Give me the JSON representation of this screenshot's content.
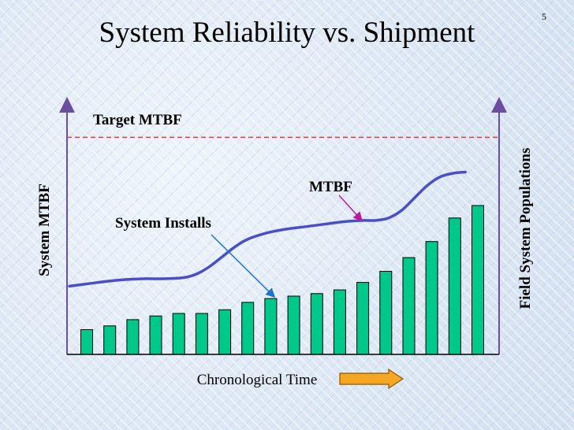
{
  "slide": {
    "number": "5",
    "title": "System Reliability vs. Shipment"
  },
  "chart_data": {
    "type": "bar",
    "title": "System Reliability vs. Shipment",
    "xlabel": "Chronological Time",
    "ylabel": "System MTBF",
    "y2label": "Field System Populations",
    "target_label": "Target MTBF",
    "target_value": 0.875,
    "annotations": [
      "MTBF",
      "System Installs"
    ],
    "ylim": [
      0,
      1
    ],
    "colors": {
      "bars": "#00c78a",
      "bar_stroke": "#000000",
      "line": "#4a4fc8",
      "target": "#e23b3b",
      "axis": "#6a4fa0",
      "arrow_fill": "#f5a623",
      "arrow_stroke": "#8a5a00",
      "pointer": "#1e73c8",
      "pointer_mtbf": "#c0169a"
    },
    "series": [
      {
        "name": "System Installs",
        "type": "bar",
        "values": [
          0.1,
          0.115,
          0.14,
          0.155,
          0.165,
          0.165,
          0.18,
          0.21,
          0.225,
          0.235,
          0.245,
          0.26,
          0.29,
          0.335,
          0.39,
          0.455,
          0.55,
          0.6
        ]
      },
      {
        "name": "MTBF",
        "type": "line",
        "points": [
          [
            0.0,
            0.275
          ],
          [
            0.045,
            0.285
          ],
          [
            0.09,
            0.295
          ],
          [
            0.135,
            0.302
          ],
          [
            0.18,
            0.305
          ],
          [
            0.225,
            0.305
          ],
          [
            0.27,
            0.31
          ],
          [
            0.3,
            0.325
          ],
          [
            0.33,
            0.355
          ],
          [
            0.36,
            0.395
          ],
          [
            0.39,
            0.435
          ],
          [
            0.42,
            0.465
          ],
          [
            0.465,
            0.49
          ],
          [
            0.51,
            0.505
          ],
          [
            0.555,
            0.515
          ],
          [
            0.6,
            0.525
          ],
          [
            0.645,
            0.535
          ],
          [
            0.69,
            0.54
          ],
          [
            0.72,
            0.54
          ],
          [
            0.75,
            0.55
          ],
          [
            0.78,
            0.58
          ],
          [
            0.81,
            0.63
          ],
          [
            0.84,
            0.68
          ],
          [
            0.87,
            0.715
          ],
          [
            0.9,
            0.73
          ],
          [
            0.93,
            0.735
          ]
        ]
      }
    ]
  }
}
